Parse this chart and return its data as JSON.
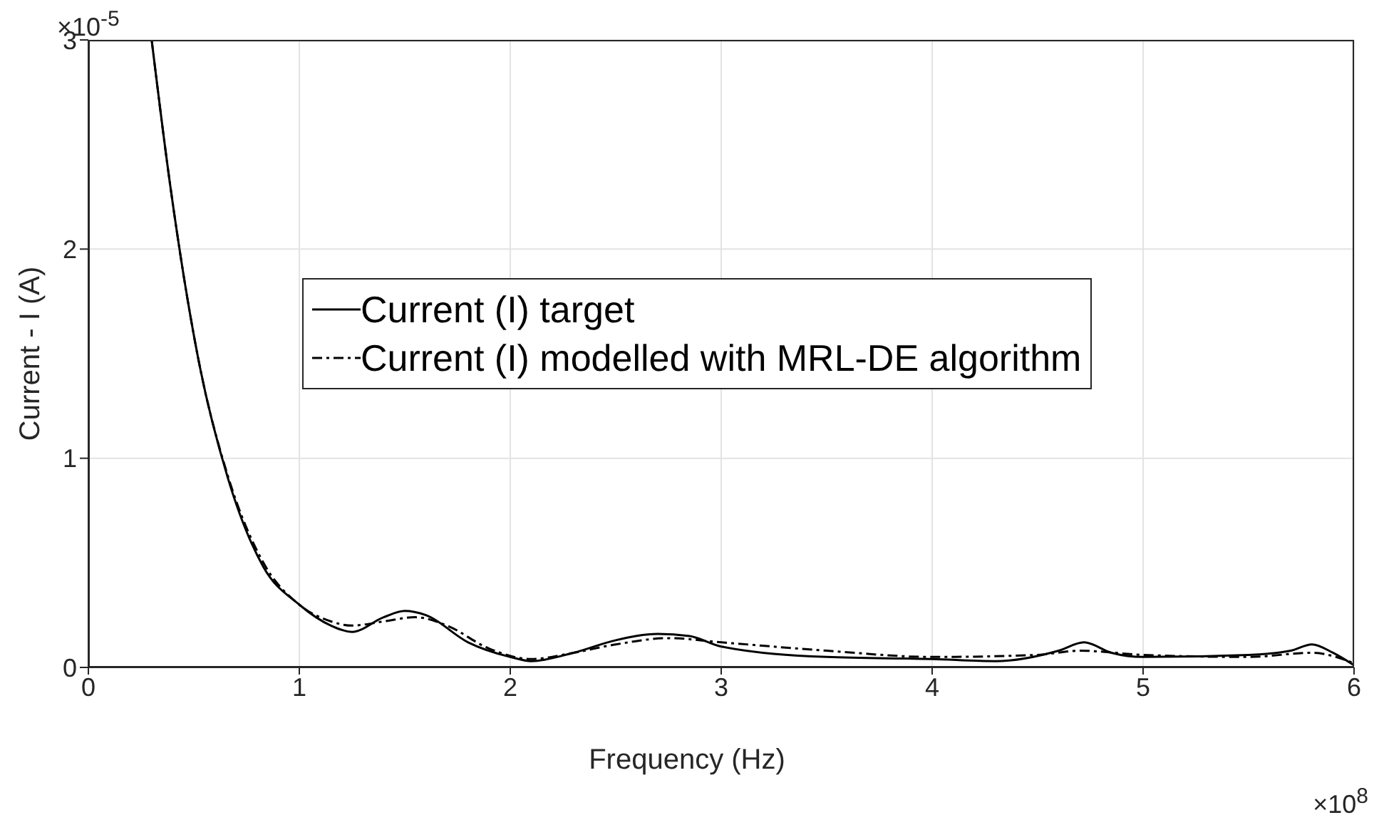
{
  "chart_data": {
    "type": "line",
    "xlabel": "Frequency (Hz)",
    "ylabel": "Current - I (A)",
    "xlim": [
      0,
      6
    ],
    "xticks": [
      0,
      1,
      2,
      3,
      4,
      5,
      6
    ],
    "ylim": [
      0,
      3
    ],
    "yticks": [
      0,
      1,
      2,
      3
    ],
    "grid": true,
    "legend": "left",
    "marker": "none",
    "annotations": [
      "×10$^{-5}$",
      "×10$^{8}$"
    ],
    "series": [
      {
        "name": "Current (I) target",
        "color": "#000000",
        "line_style": "solid",
        "x": [
          0.3,
          0.39,
          0.53,
          0.66,
          0.83,
          1.0,
          1.15,
          1.25,
          1.4,
          1.5,
          1.6,
          1.8,
          2.0,
          2.1,
          2.3,
          2.5,
          2.7,
          2.85,
          3.0,
          3.5,
          4.0,
          4.3,
          4.6,
          4.72,
          4.85,
          5.0,
          5.5,
          5.7,
          5.8,
          5.9,
          6.0
        ],
        "values": [
          3.0,
          2.29,
          1.43,
          0.91,
          0.48,
          0.3,
          0.2,
          0.17,
          0.24,
          0.27,
          0.25,
          0.12,
          0.05,
          0.03,
          0.07,
          0.13,
          0.16,
          0.15,
          0.1,
          0.05,
          0.04,
          0.03,
          0.08,
          0.12,
          0.07,
          0.05,
          0.06,
          0.08,
          0.11,
          0.07,
          0.01
        ]
      },
      {
        "name": "Current (I) modelled with MRL-DE algorithm",
        "color": "#000000",
        "line_style": "dashed",
        "x": [
          0.3,
          0.39,
          0.53,
          0.66,
          0.83,
          1.0,
          1.15,
          1.25,
          1.4,
          1.55,
          1.7,
          1.9,
          2.1,
          2.3,
          2.5,
          2.75,
          3.0,
          3.5,
          4.0,
          4.5,
          4.7,
          5.0,
          5.5,
          5.8,
          6.0
        ],
        "values": [
          3.0,
          2.29,
          1.43,
          0.92,
          0.5,
          0.3,
          0.22,
          0.2,
          0.22,
          0.24,
          0.2,
          0.09,
          0.04,
          0.07,
          0.11,
          0.14,
          0.12,
          0.08,
          0.05,
          0.06,
          0.08,
          0.06,
          0.05,
          0.07,
          0.02
        ]
      }
    ]
  }
}
